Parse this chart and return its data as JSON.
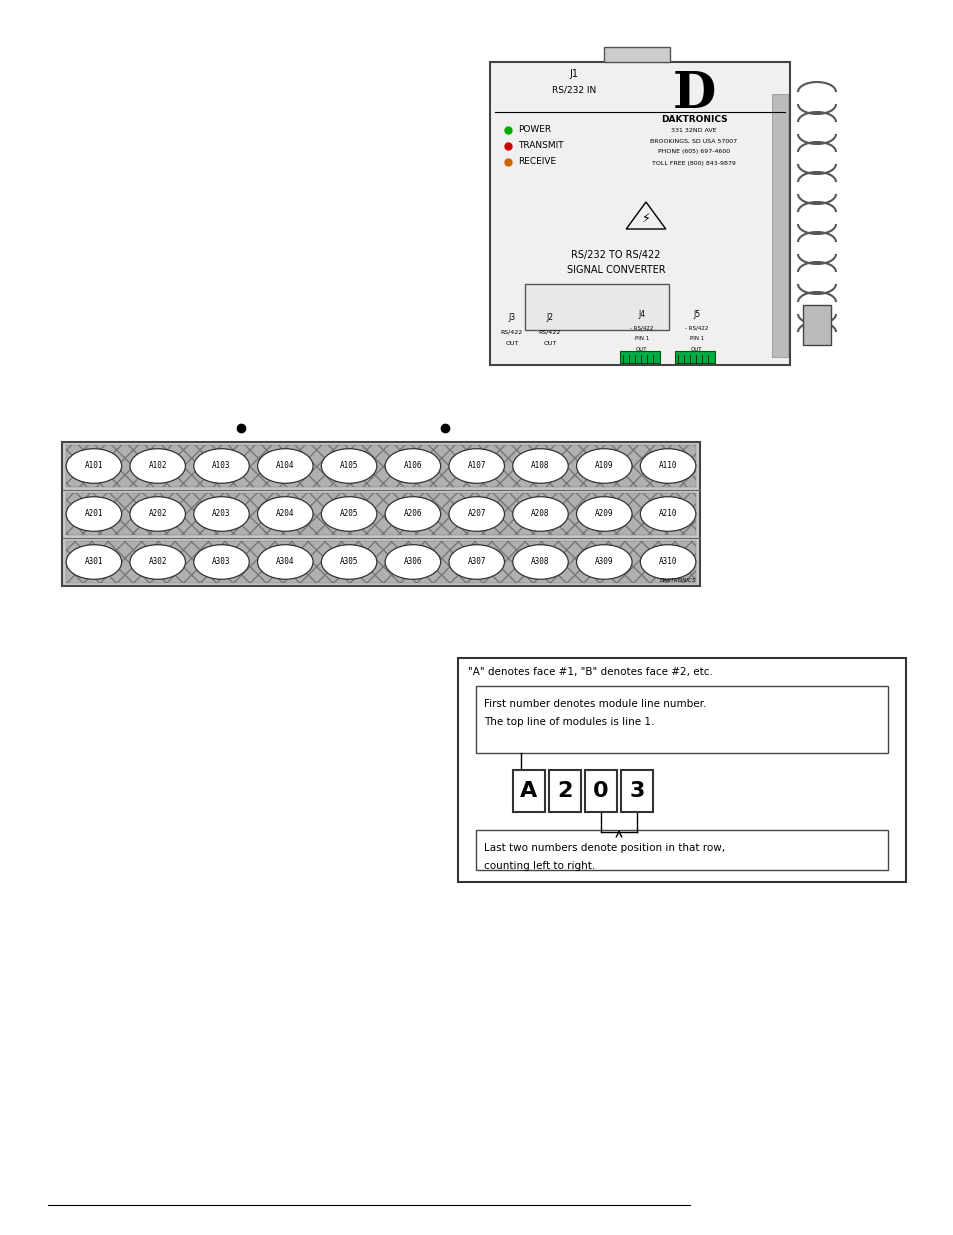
{
  "bg_color": "#ffffff",
  "rows": [
    [
      "A101",
      "A102",
      "A103",
      "A104",
      "A105",
      "A106",
      "A107",
      "A108",
      "A109",
      "A110"
    ],
    [
      "A201",
      "A202",
      "A203",
      "A204",
      "A205",
      "A206",
      "A207",
      "A208",
      "A209",
      "A210"
    ],
    [
      "A301",
      "A302",
      "A303",
      "A304",
      "A305",
      "A306",
      "A307",
      "A308",
      "A309",
      "A310"
    ]
  ],
  "code_chars": [
    "A",
    "2",
    "0",
    "3"
  ],
  "label_face": "\"A\" denotes face #1, \"B\" denotes face #2, etc.",
  "label_line1a": "First number denotes module line number.",
  "label_line1b": "The top line of modules is line 1.",
  "label_line2a": "Last two numbers denote position in that row,",
  "label_line2b": "counting left to right.",
  "color_power": "#00aa00",
  "color_transmit": "#cc0000",
  "color_receive": "#cc6600"
}
